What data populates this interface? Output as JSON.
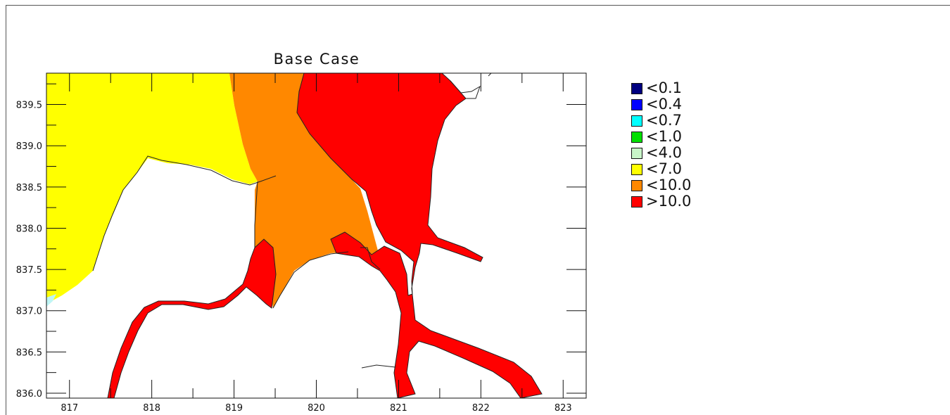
{
  "map": {
    "title": "Base Case",
    "x_ticks": [
      "817",
      "818",
      "819",
      "820",
      "821",
      "822",
      "823"
    ],
    "y_ticks": [
      "836.0",
      "836.5",
      "837.0",
      "837.5",
      "838.0",
      "838.5",
      "839.0",
      "839.5"
    ],
    "x_range": [
      816.72,
      823.28
    ],
    "y_range": [
      835.94,
      839.88
    ],
    "regions": [
      {
        "name": "region-lt-7",
        "color": "#ffff00"
      },
      {
        "name": "region-lt-10",
        "color": "#ff8800"
      },
      {
        "name": "region-gt-10",
        "color": "#ff0000"
      },
      {
        "name": "region-lt-0.7",
        "color": "#bff5f5"
      }
    ]
  },
  "legend": {
    "items": [
      {
        "label": "<0.1",
        "color": "#000080"
      },
      {
        "label": "<0.4",
        "color": "#0000ff"
      },
      {
        "label": "<0.7",
        "color": "#00ffff"
      },
      {
        "label": "<1.0",
        "color": "#00e000"
      },
      {
        "label": "<4.0",
        "color": "#c8f5c8"
      },
      {
        "label": "<7.0",
        "color": "#ffff00"
      },
      {
        "label": "<10.0",
        "color": "#ff8800"
      },
      {
        "label": ">10.0",
        "color": "#ff0000"
      }
    ]
  }
}
